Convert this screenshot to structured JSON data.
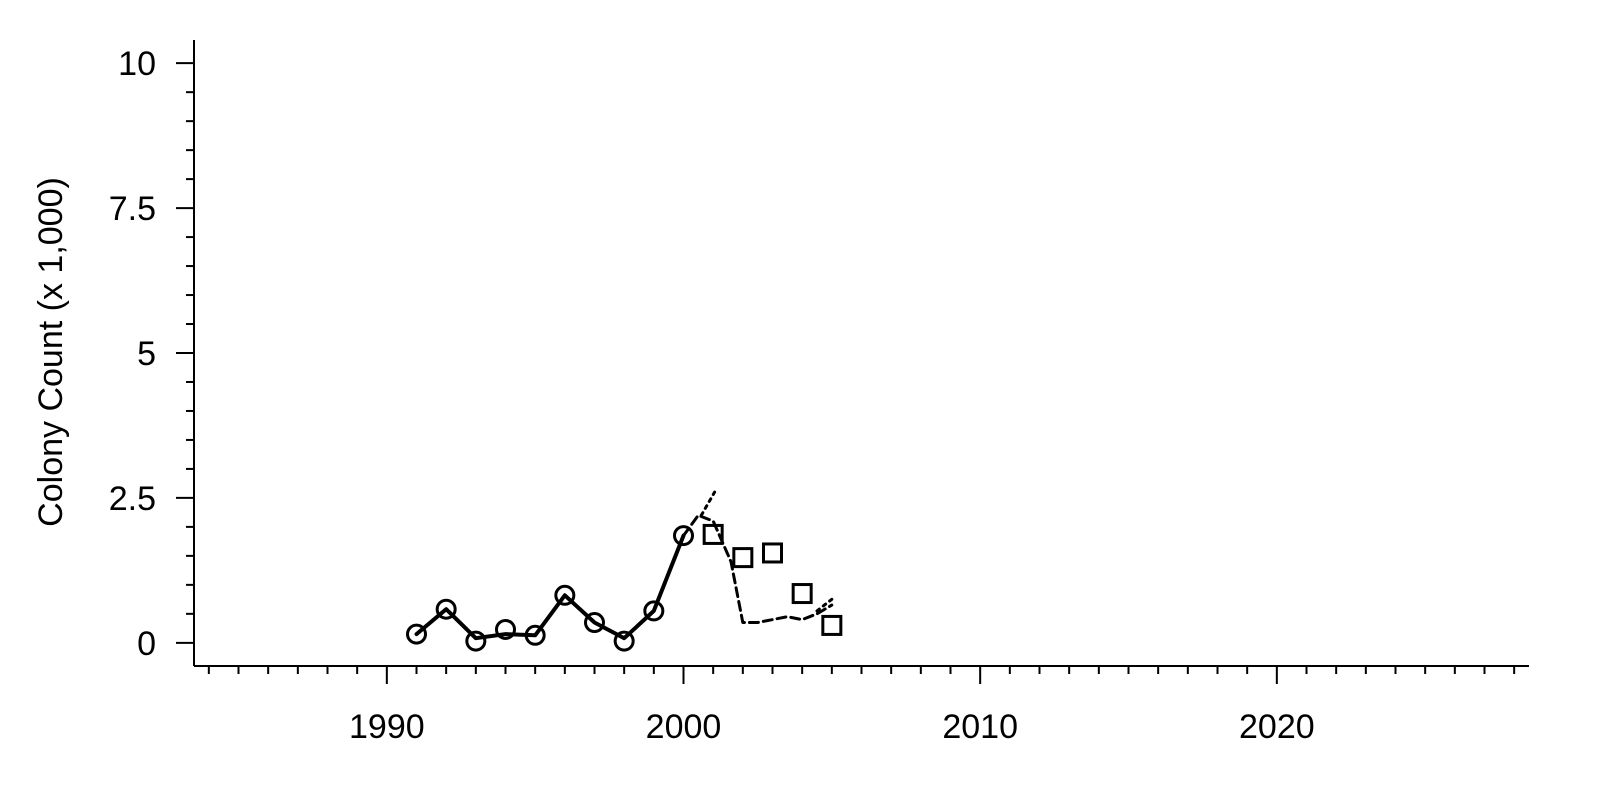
{
  "chart_data": {
    "type": "line",
    "title": "",
    "xlabel": "",
    "ylabel": "Colony Count (x 1,000)",
    "xlim": [
      1983.5,
      2028.5
    ],
    "ylim": [
      -0.4,
      10.4
    ],
    "x_ticks": [
      1990,
      2000,
      2010,
      2020
    ],
    "x_tick_labels": [
      "1990",
      "2000",
      "2010",
      "2020"
    ],
    "y_ticks": [
      0,
      2.5,
      5,
      7.5,
      10
    ],
    "y_tick_labels": [
      "0",
      "2.5",
      "5",
      "7.5",
      "10"
    ],
    "grid": false,
    "legend": "none",
    "color": "#000000",
    "series": [
      {
        "marker": "circle",
        "x": [
          1991,
          1992,
          1993,
          1994,
          1995,
          1996,
          1997,
          1998,
          1999,
          2000
        ],
        "y": [
          0.15,
          0.58,
          0.03,
          0.23,
          0.13,
          0.82,
          0.35,
          0.03,
          0.55,
          1.85
        ],
        "line": {
          "style": "solid",
          "x": [
            1991,
            1992,
            1993,
            1994,
            1995,
            1996,
            1997,
            1998,
            1999,
            2000
          ],
          "y": [
            0.15,
            0.58,
            0.08,
            0.15,
            0.13,
            0.82,
            0.35,
            0.08,
            0.55,
            1.85
          ]
        }
      },
      {
        "marker": "square",
        "x": [
          2001,
          2002,
          2003,
          2004,
          2005
        ],
        "y": [
          1.87,
          1.47,
          1.55,
          0.85,
          0.3
        ],
        "line": {
          "style": "dashed",
          "x": [
            2000,
            2000.5,
            2001,
            2001.6,
            2002,
            2002.5,
            2003,
            2003.5,
            2004,
            2004.5,
            2005
          ],
          "y": [
            1.85,
            2.2,
            2.1,
            1.4,
            0.35,
            0.35,
            0.4,
            0.45,
            0.4,
            0.5,
            0.65
          ]
        }
      },
      {
        "marker": "none",
        "line": {
          "style": "dotted",
          "x": [
            2000.6,
            2001.05
          ],
          "y": [
            2.2,
            2.6
          ]
        }
      },
      {
        "marker": "none",
        "line": {
          "style": "dotted",
          "x": [
            2004.5,
            2005
          ],
          "y": [
            0.55,
            0.75
          ]
        }
      }
    ]
  }
}
